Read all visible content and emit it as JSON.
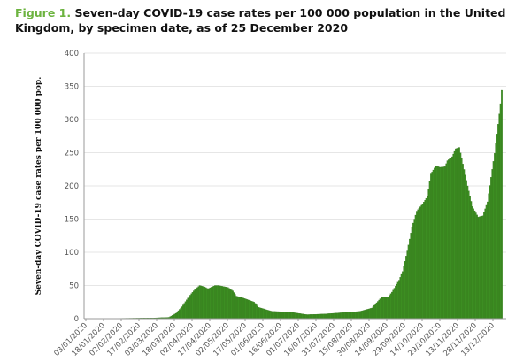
{
  "figure_label": "Figure 1.",
  "chart_data": {
    "type": "bar",
    "title": "Seven-day COVID-19 case rates per 100 000 population in the United Kingdom, by specimen date, as of 25 December 2020",
    "xlabel": "",
    "ylabel": "Seven-day COVID-19 case rates per 100 000 pop.",
    "ylim": [
      0,
      400
    ],
    "yticks": [
      "0",
      "50",
      "100",
      "150",
      "200",
      "250",
      "300",
      "350",
      "400"
    ],
    "xticks": [
      "03/01/2020",
      "18/01/2020",
      "02/02/2020",
      "17/02/2020",
      "03/03/2020",
      "18/03/2020",
      "02/04/2020",
      "17/04/2020",
      "02/05/2020",
      "17/05/2020",
      "01/06/2020",
      "16/06/2020",
      "01/07/2020",
      "16/07/2020",
      "31/07/2020",
      "15/08/2020",
      "30/08/2020",
      "14/09/2020",
      "29/09/2020",
      "14/10/2020",
      "29/10/2020",
      "13/11/2020",
      "28/11/2020",
      "13/12/2020"
    ],
    "grid": "horizontal",
    "color": "#3d8f22",
    "x": [
      "03/01/2020",
      "28/02/2020",
      "13/03/2020",
      "19/03/2020",
      "24/03/2020",
      "29/03/2020",
      "03/04/2020",
      "08/04/2020",
      "12/04/2020",
      "15/04/2020",
      "21/04/2020",
      "24/04/2020",
      "02/05/2020",
      "06/05/2020",
      "09/05/2020",
      "15/05/2020",
      "24/05/2020",
      "28/05/2020",
      "08/06/2020",
      "23/06/2020",
      "08/07/2020",
      "23/07/2020",
      "07/08/2020",
      "22/08/2020",
      "01/09/2020",
      "09/09/2020",
      "15/09/2020",
      "18/09/2020",
      "24/09/2020",
      "27/09/2020",
      "01/10/2020",
      "05/10/2020",
      "09/10/2020",
      "14/10/2020",
      "18/10/2020",
      "21/10/2020",
      "25/10/2020",
      "29/10/2020",
      "02/11/2020",
      "04/11/2020",
      "08/11/2020",
      "11/11/2020",
      "14/11/2020",
      "17/11/2020",
      "21/11/2020",
      "25/11/2020",
      "30/11/2020",
      "04/12/2020",
      "08/12/2020",
      "11/12/2020",
      "14/12/2020",
      "17/12/2020",
      "19/12/2020",
      "20/12/2020"
    ],
    "values": [
      0,
      1,
      2,
      8,
      18,
      31,
      42,
      50,
      48,
      45,
      50,
      50,
      47,
      42,
      34,
      31,
      25,
      17,
      11,
      10,
      6,
      7,
      9,
      11,
      16,
      32,
      33,
      40,
      58,
      71,
      102,
      138,
      162,
      173,
      184,
      218,
      230,
      228,
      229,
      238,
      244,
      256,
      258,
      233,
      200,
      169,
      153,
      155,
      176,
      213,
      249,
      293,
      324,
      344
    ]
  }
}
